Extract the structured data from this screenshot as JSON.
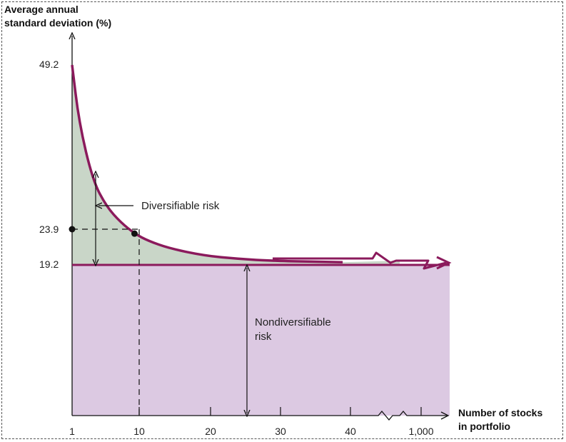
{
  "chart_data": {
    "type": "area",
    "title": "",
    "ylabel_lines": [
      "Average annual",
      "standard deviation (%)"
    ],
    "xlabel_lines": [
      "Number of stocks",
      "in portfolio"
    ],
    "x_ticks": [
      "1",
      "10",
      "20",
      "30",
      "40",
      "1,000"
    ],
    "y_ticks": [
      "49.2",
      "23.9",
      "19.2"
    ],
    "highlight_point": {
      "x": 10,
      "y": 23.9
    },
    "nondiversifiable_level": 19.2,
    "series": [
      {
        "x": [
          1,
          2,
          4,
          6,
          8,
          10,
          12,
          15,
          20,
          25,
          30,
          40
        ],
        "values": [
          49.2,
          40.6,
          31.8,
          27.9,
          25.6,
          23.9,
          22.8,
          21.7,
          20.6,
          20.1,
          19.8,
          19.6
        ]
      }
    ],
    "annotations": {
      "diversifiable": "Diversifiable risk",
      "nondiversifiable_lines": [
        "Nondiversifiable",
        "risk"
      ]
    },
    "colors": {
      "curve": "#8b1a5c",
      "diversifiable_fill": "#c9d6c8",
      "nondiversifiable_fill": "#dcc9e2",
      "axis": "#111111"
    }
  }
}
